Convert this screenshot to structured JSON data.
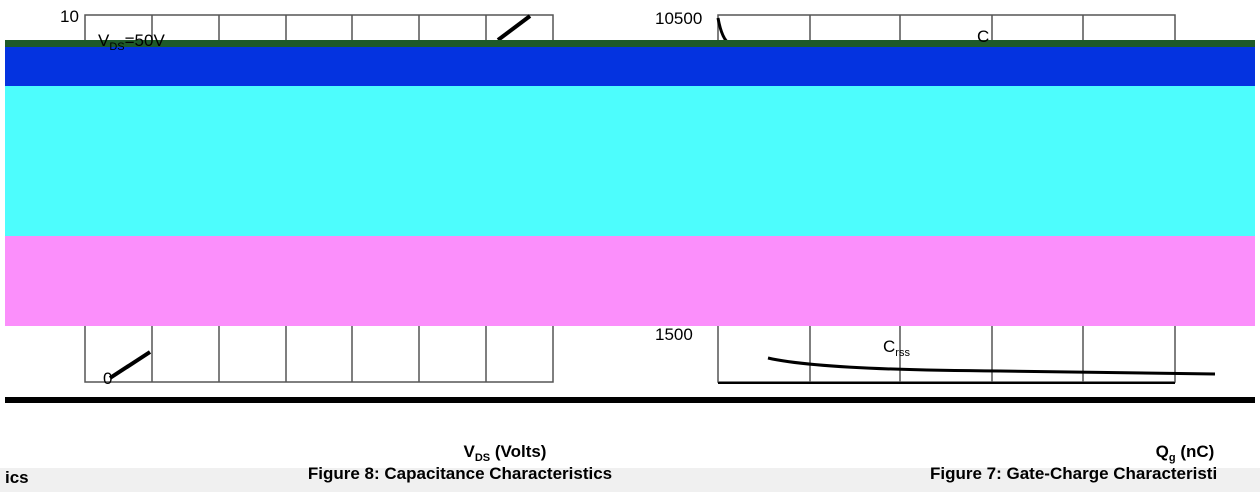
{
  "left_panel": {
    "y_top_label": "10",
    "annotation": {
      "main": "V",
      "sub": "DS",
      "rest": "=50V"
    },
    "y_bottom_label": "0",
    "x_axis_title": {
      "main": "V",
      "sub": "DS",
      "rest": " (Volts)"
    },
    "figure_caption": "Figure 8: Capacitance Characteristics",
    "left_fragment": "ics"
  },
  "right_panel": {
    "y_top_label": "10500",
    "y_bottom_label": "1500",
    "curve_label_top": "C",
    "curve_label_bottom": {
      "main": "C",
      "sub": "rss"
    },
    "x_axis_title": {
      "main": "Q",
      "sub": "g",
      "rest": " (nC)"
    },
    "figure_caption": "Figure 7: Gate-Charge Characteristi"
  }
}
